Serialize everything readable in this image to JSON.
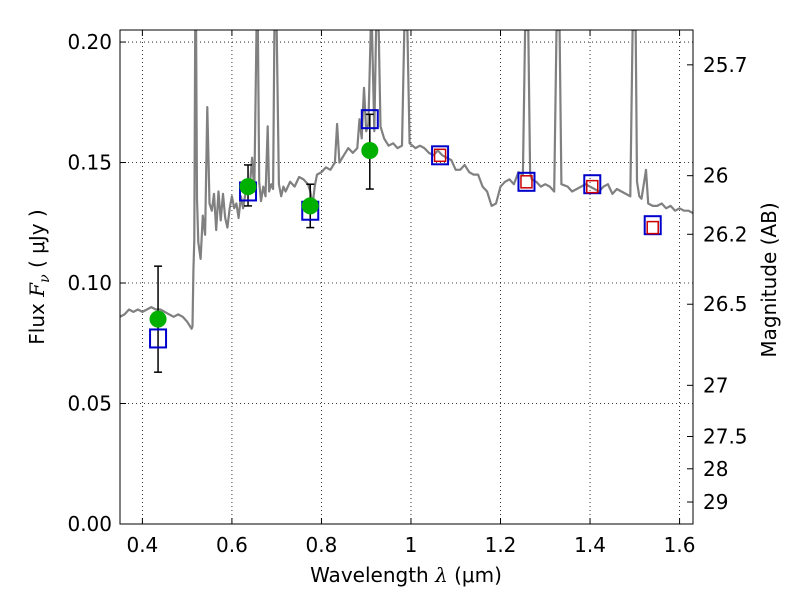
{
  "chart_data": {
    "type": "scatter",
    "title": "",
    "xlabel": "Wavelength  λ (μm)",
    "ylabel": "Flux  F_ν  ( μJy )",
    "ylabel_parts": {
      "prefix": "Flux  ",
      "symbol": "F",
      "subscript": "ν",
      "suffix": "  ( μJy )"
    },
    "xlabel_parts": {
      "prefix": "Wavelength  ",
      "symbol": "λ",
      "suffix": " (μm)"
    },
    "y2label": "Magnitude (AB)",
    "xlim": [
      0.35,
      1.63
    ],
    "ylim": [
      0.0,
      0.205
    ],
    "grid": true,
    "grid_style": "dotted",
    "x_ticks": [
      {
        "value": 0.4,
        "label": "0.4"
      },
      {
        "value": 0.6,
        "label": "0.6"
      },
      {
        "value": 0.8,
        "label": "0.8"
      },
      {
        "value": 1.0,
        "label": "1"
      },
      {
        "value": 1.2,
        "label": "1.2"
      },
      {
        "value": 1.4,
        "label": "1.4"
      },
      {
        "value": 1.6,
        "label": "1.6"
      }
    ],
    "y_ticks": [
      {
        "value": 0.0,
        "label": "0.00"
      },
      {
        "value": 0.05,
        "label": "0.05"
      },
      {
        "value": 0.1,
        "label": "0.10"
      },
      {
        "value": 0.15,
        "label": "0.15"
      },
      {
        "value": 0.2,
        "label": "0.20"
      }
    ],
    "y2_ticks": [
      {
        "value": 25.7,
        "label": "25.7"
      },
      {
        "value": 26.0,
        "label": "26"
      },
      {
        "value": 26.2,
        "label": "26.2"
      },
      {
        "value": 26.5,
        "label": "26.5"
      },
      {
        "value": 27.0,
        "label": "27"
      },
      {
        "value": 27.5,
        "label": "27.5"
      },
      {
        "value": 28.0,
        "label": "28"
      },
      {
        "value": 29.0,
        "label": "29"
      }
    ],
    "magnitude_zero_point": 23.9,
    "series": [
      {
        "kind": "spectrum",
        "color": "#808080",
        "points": [
          [
            0.35,
            0.086
          ],
          [
            0.36,
            0.087
          ],
          [
            0.37,
            0.089
          ],
          [
            0.38,
            0.088
          ],
          [
            0.39,
            0.089
          ],
          [
            0.4,
            0.088
          ],
          [
            0.41,
            0.089
          ],
          [
            0.42,
            0.09
          ],
          [
            0.43,
            0.089
          ],
          [
            0.44,
            0.089
          ],
          [
            0.45,
            0.088
          ],
          [
            0.46,
            0.087
          ],
          [
            0.47,
            0.086
          ],
          [
            0.48,
            0.087
          ],
          [
            0.49,
            0.086
          ],
          [
            0.5,
            0.084
          ],
          [
            0.51,
            0.081
          ],
          [
            0.512,
            0.082
          ],
          [
            0.514,
            0.105
          ],
          [
            0.516,
            0.118
          ],
          [
            0.518,
            0.205
          ],
          [
            0.52,
            0.205
          ],
          [
            0.522,
            0.135
          ],
          [
            0.525,
            0.117
          ],
          [
            0.53,
            0.11
          ],
          [
            0.535,
            0.128
          ],
          [
            0.54,
            0.12
          ],
          [
            0.545,
            0.173
          ],
          [
            0.55,
            0.133
          ],
          [
            0.555,
            0.13
          ],
          [
            0.56,
            0.137
          ],
          [
            0.565,
            0.122
          ],
          [
            0.57,
            0.138
          ],
          [
            0.575,
            0.126
          ],
          [
            0.58,
            0.137
          ],
          [
            0.585,
            0.127
          ],
          [
            0.59,
            0.123
          ],
          [
            0.595,
            0.131
          ],
          [
            0.6,
            0.136
          ],
          [
            0.605,
            0.131
          ],
          [
            0.61,
            0.133
          ],
          [
            0.615,
            0.127
          ],
          [
            0.62,
            0.136
          ],
          [
            0.625,
            0.131
          ],
          [
            0.63,
            0.137
          ],
          [
            0.635,
            0.138
          ],
          [
            0.64,
            0.14
          ],
          [
            0.645,
            0.152
          ],
          [
            0.65,
            0.138
          ],
          [
            0.655,
            0.205
          ],
          [
            0.658,
            0.205
          ],
          [
            0.661,
            0.142
          ],
          [
            0.665,
            0.134
          ],
          [
            0.67,
            0.14
          ],
          [
            0.675,
            0.136
          ],
          [
            0.68,
            0.165
          ],
          [
            0.683,
            0.138
          ],
          [
            0.688,
            0.141
          ],
          [
            0.692,
            0.139
          ],
          [
            0.695,
            0.205
          ],
          [
            0.7,
            0.205
          ],
          [
            0.705,
            0.141
          ],
          [
            0.71,
            0.136
          ],
          [
            0.715,
            0.14
          ],
          [
            0.72,
            0.138
          ],
          [
            0.73,
            0.142
          ],
          [
            0.74,
            0.14
          ],
          [
            0.75,
            0.144
          ],
          [
            0.76,
            0.143
          ],
          [
            0.77,
            0.141
          ],
          [
            0.775,
            0.138
          ],
          [
            0.78,
            0.132
          ],
          [
            0.785,
            0.14
          ],
          [
            0.79,
            0.145
          ],
          [
            0.8,
            0.146
          ],
          [
            0.81,
            0.148
          ],
          [
            0.82,
            0.147
          ],
          [
            0.83,
            0.15
          ],
          [
            0.835,
            0.166
          ],
          [
            0.84,
            0.15
          ],
          [
            0.85,
            0.153
          ],
          [
            0.86,
            0.156
          ],
          [
            0.87,
            0.154
          ],
          [
            0.88,
            0.156
          ],
          [
            0.885,
            0.168
          ],
          [
            0.89,
            0.16
          ],
          [
            0.895,
            0.181
          ],
          [
            0.9,
            0.163
          ],
          [
            0.905,
            0.166
          ],
          [
            0.91,
            0.205
          ],
          [
            0.913,
            0.205
          ],
          [
            0.918,
            0.163
          ],
          [
            0.922,
            0.205
          ],
          [
            0.928,
            0.205
          ],
          [
            0.932,
            0.165
          ],
          [
            0.94,
            0.16
          ],
          [
            0.95,
            0.157
          ],
          [
            0.96,
            0.158
          ],
          [
            0.97,
            0.156
          ],
          [
            0.98,
            0.157
          ],
          [
            0.985,
            0.205
          ],
          [
            0.992,
            0.205
          ],
          [
            0.997,
            0.158
          ],
          [
            1.01,
            0.156
          ],
          [
            1.02,
            0.157
          ],
          [
            1.03,
            0.156
          ],
          [
            1.04,
            0.154
          ],
          [
            1.05,
            0.153
          ],
          [
            1.06,
            0.155
          ],
          [
            1.07,
            0.153
          ],
          [
            1.08,
            0.152
          ],
          [
            1.09,
            0.151
          ],
          [
            1.1,
            0.147
          ],
          [
            1.11,
            0.147
          ],
          [
            1.12,
            0.149
          ],
          [
            1.13,
            0.146
          ],
          [
            1.14,
            0.145
          ],
          [
            1.15,
            0.145
          ],
          [
            1.16,
            0.14
          ],
          [
            1.17,
            0.138
          ],
          [
            1.18,
            0.132
          ],
          [
            1.19,
            0.133
          ],
          [
            1.2,
            0.14
          ],
          [
            1.21,
            0.142
          ],
          [
            1.22,
            0.143
          ],
          [
            1.23,
            0.141
          ],
          [
            1.24,
            0.146
          ],
          [
            1.25,
            0.145
          ],
          [
            1.255,
            0.205
          ],
          [
            1.262,
            0.205
          ],
          [
            1.266,
            0.146
          ],
          [
            1.27,
            0.143
          ],
          [
            1.28,
            0.142
          ],
          [
            1.29,
            0.14
          ],
          [
            1.3,
            0.141
          ],
          [
            1.31,
            0.14
          ],
          [
            1.32,
            0.138
          ],
          [
            1.325,
            0.205
          ],
          [
            1.332,
            0.205
          ],
          [
            1.336,
            0.141
          ],
          [
            1.35,
            0.14
          ],
          [
            1.36,
            0.138
          ],
          [
            1.38,
            0.14
          ],
          [
            1.39,
            0.141
          ],
          [
            1.4,
            0.14
          ],
          [
            1.41,
            0.139
          ],
          [
            1.42,
            0.138
          ],
          [
            1.43,
            0.14
          ],
          [
            1.44,
            0.141
          ],
          [
            1.45,
            0.137
          ],
          [
            1.46,
            0.139
          ],
          [
            1.47,
            0.138
          ],
          [
            1.48,
            0.137
          ],
          [
            1.49,
            0.136
          ],
          [
            1.495,
            0.205
          ],
          [
            1.502,
            0.205
          ],
          [
            1.505,
            0.142
          ],
          [
            1.51,
            0.136
          ],
          [
            1.515,
            0.135
          ],
          [
            1.52,
            0.141
          ],
          [
            1.525,
            0.147
          ],
          [
            1.53,
            0.133
          ],
          [
            1.54,
            0.132
          ],
          [
            1.55,
            0.132
          ],
          [
            1.56,
            0.133
          ],
          [
            1.57,
            0.131
          ],
          [
            1.58,
            0.132
          ],
          [
            1.59,
            0.13
          ],
          [
            1.6,
            0.131
          ],
          [
            1.61,
            0.13
          ],
          [
            1.62,
            0.13
          ],
          [
            1.63,
            0.129
          ]
        ]
      },
      {
        "kind": "measured",
        "marker": "circle",
        "color": "#00b000",
        "points": [
          {
            "x": 0.435,
            "y": 0.085,
            "err_low": 0.022,
            "err_high": 0.022
          },
          {
            "x": 0.636,
            "y": 0.14,
            "err_low": 0.008,
            "err_high": 0.009
          },
          {
            "x": 0.775,
            "y": 0.132,
            "err_low": 0.009,
            "err_high": 0.009
          },
          {
            "x": 0.908,
            "y": 0.155,
            "err_low": 0.016,
            "err_high": 0.015
          }
        ]
      },
      {
        "kind": "model_synthetic",
        "marker": "square",
        "color": "#0000cc",
        "points": [
          {
            "x": 0.435,
            "y": 0.077
          },
          {
            "x": 0.636,
            "y": 0.138
          },
          {
            "x": 0.775,
            "y": 0.13
          },
          {
            "x": 0.908,
            "y": 0.168
          },
          {
            "x": 1.065,
            "y": 0.153
          },
          {
            "x": 1.258,
            "y": 0.142
          },
          {
            "x": 1.405,
            "y": 0.141
          },
          {
            "x": 1.54,
            "y": 0.124
          }
        ]
      },
      {
        "kind": "model_inner",
        "marker": "square",
        "color": "#cc0000",
        "points": [
          {
            "x": 1.065,
            "y": 0.153
          },
          {
            "x": 1.258,
            "y": 0.142
          },
          {
            "x": 1.405,
            "y": 0.14
          },
          {
            "x": 1.54,
            "y": 0.123
          }
        ]
      }
    ]
  }
}
